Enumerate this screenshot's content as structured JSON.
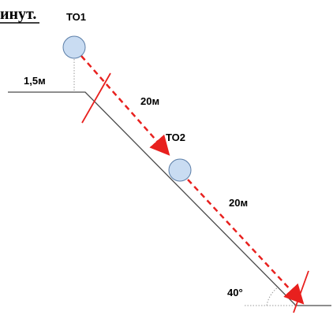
{
  "header_fragment": "инут.",
  "labels": {
    "to1": "ТО1",
    "to2": "ТО2",
    "height": "1,5м",
    "dist1": "20м",
    "dist2": "20м",
    "angle": "40°"
  },
  "colors": {
    "path": "#e8201e",
    "ball_fill": "#c9dcf2",
    "ball_stroke": "#5b7ea8",
    "ground": "#4a4a4a",
    "guide": "#9a9a9a"
  }
}
